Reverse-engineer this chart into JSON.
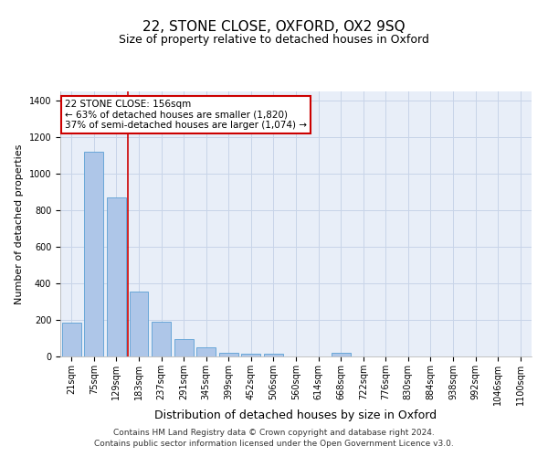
{
  "title": "22, STONE CLOSE, OXFORD, OX2 9SQ",
  "subtitle": "Size of property relative to detached houses in Oxford",
  "xlabel": "Distribution of detached houses by size in Oxford",
  "ylabel": "Number of detached properties",
  "categories": [
    "21sqm",
    "75sqm",
    "129sqm",
    "183sqm",
    "237sqm",
    "291sqm",
    "345sqm",
    "399sqm",
    "452sqm",
    "506sqm",
    "560sqm",
    "614sqm",
    "668sqm",
    "722sqm",
    "776sqm",
    "830sqm",
    "884sqm",
    "938sqm",
    "992sqm",
    "1046sqm",
    "1100sqm"
  ],
  "values": [
    185,
    1120,
    870,
    355,
    190,
    95,
    50,
    22,
    17,
    15,
    0,
    0,
    20,
    0,
    0,
    0,
    0,
    0,
    0,
    0,
    0
  ],
  "bar_color": "#aec6e8",
  "bar_edge_color": "#5a9fd4",
  "vline_x": 2.5,
  "vline_color": "#cc0000",
  "annotation_text": "22 STONE CLOSE: 156sqm\n← 63% of detached houses are smaller (1,820)\n37% of semi-detached houses are larger (1,074) →",
  "annotation_box_color": "#ffffff",
  "annotation_box_edge": "#cc0000",
  "ylim": [
    0,
    1450
  ],
  "yticks": [
    0,
    200,
    400,
    600,
    800,
    1000,
    1200,
    1400
  ],
  "grid_color": "#c8d4e8",
  "bg_color": "#e8eef8",
  "footer": "Contains HM Land Registry data © Crown copyright and database right 2024.\nContains public sector information licensed under the Open Government Licence v3.0.",
  "title_fontsize": 11,
  "subtitle_fontsize": 9,
  "xlabel_fontsize": 9,
  "ylabel_fontsize": 8,
  "tick_fontsize": 7,
  "annotation_fontsize": 7.5,
  "footer_fontsize": 6.5
}
